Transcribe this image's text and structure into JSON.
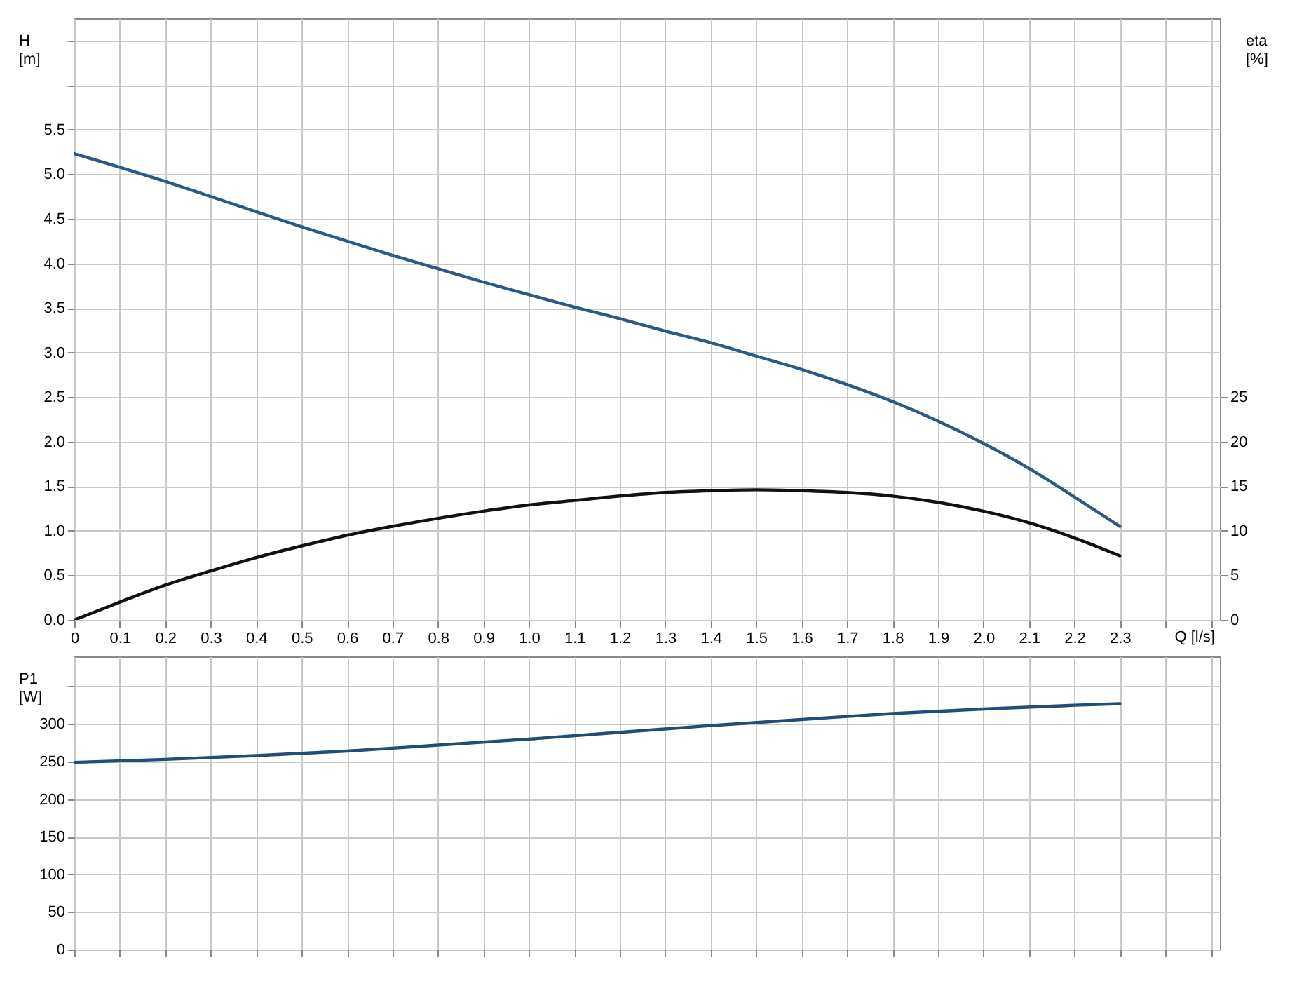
{
  "chart_data": [
    {
      "type": "line",
      "ylabel": "H [m]",
      "y2label": "eta [%]",
      "xlabel": "Q [l/s]",
      "xlim": [
        0,
        2.52
      ],
      "xticks": [
        {
          "value": 0,
          "label": "0"
        },
        0.1,
        0.2,
        0.3,
        0.4,
        0.5,
        0.6,
        0.7,
        0.8,
        0.9,
        {
          "value": 1,
          "label": "1.0"
        },
        1.1,
        1.2,
        1.3,
        1.4,
        1.5,
        1.6,
        1.7,
        1.8,
        1.9,
        {
          "value": 2,
          "label": "2.0"
        },
        2.1,
        2.2,
        2.3,
        {
          "value": 2.4,
          "label": null
        },
        {
          "value": 2.5,
          "label": null
        }
      ],
      "ylim": [
        0,
        6.75
      ],
      "yticks": [
        {
          "value": 0,
          "label": "0.0"
        },
        0.5,
        {
          "value": 1,
          "label": "1.0"
        },
        1.5,
        {
          "value": 2,
          "label": "2.0"
        },
        2.5,
        {
          "value": 3,
          "label": "3.0"
        },
        3.5,
        {
          "value": 4,
          "label": "4.0"
        },
        4.5,
        {
          "value": 5,
          "label": "5.0"
        },
        5.5,
        {
          "value": 6.0,
          "label": null
        },
        {
          "value": 6.5,
          "label": null
        }
      ],
      "y2lim": [
        0,
        67.5
      ],
      "y2ticks": [
        0,
        5,
        10,
        15,
        20,
        25
      ],
      "grid": true,
      "x": [
        0,
        0.1,
        0.2,
        0.3,
        0.4,
        0.5,
        0.6,
        0.7,
        0.8,
        0.9,
        1.0,
        1.1,
        1.2,
        1.3,
        1.4,
        1.5,
        1.6,
        1.7,
        1.8,
        1.9,
        2.0,
        2.1,
        2.2,
        2.3
      ],
      "series": [
        {
          "color": "#2b5a87",
          "values": [
            5.23,
            5.08,
            4.92,
            4.75,
            4.58,
            4.41,
            4.25,
            4.09,
            3.94,
            3.79,
            3.65,
            3.51,
            3.38,
            3.24,
            3.11,
            2.96,
            2.81,
            2.64,
            2.45,
            2.23,
            1.98,
            1.7,
            1.38,
            1.05
          ]
        },
        {
          "color": "#111111",
          "axis": "y2",
          "values": [
            0,
            2,
            3.9,
            5.5,
            7,
            8.3,
            9.5,
            10.5,
            11.4,
            12.2,
            12.9,
            13.4,
            13.9,
            14.3,
            14.5,
            14.6,
            14.5,
            14.3,
            13.9,
            13.2,
            12.2,
            10.9,
            9.2,
            7.2
          ]
        }
      ]
    },
    {
      "type": "line",
      "ylabel": "P1 [W]",
      "xlim": [
        0,
        2.52
      ],
      "xticks": [
        0,
        0.1,
        0.2,
        0.3,
        0.4,
        0.5,
        0.6,
        0.7,
        0.8,
        0.9,
        1.0,
        1.1,
        1.2,
        1.3,
        1.4,
        1.5,
        1.6,
        1.7,
        1.8,
        1.9,
        2.0,
        2.1,
        2.2,
        2.3,
        2.4,
        2.5
      ],
      "ylim": [
        0,
        390
      ],
      "yticks": [
        0,
        50,
        100,
        150,
        200,
        250,
        300,
        {
          "value": 350,
          "label": null
        }
      ],
      "tick_labels": "y",
      "grid": true,
      "x": [
        0,
        0.2,
        0.4,
        0.6,
        0.8,
        1.0,
        1.2,
        1.4,
        1.6,
        1.8,
        2.0,
        2.2,
        2.3
      ],
      "series": [
        {
          "color": "#1f4e79",
          "values": [
            249,
            253,
            258,
            264,
            272,
            280,
            289,
            298,
            306,
            314,
            320,
            325,
            327
          ]
        }
      ]
    }
  ]
}
